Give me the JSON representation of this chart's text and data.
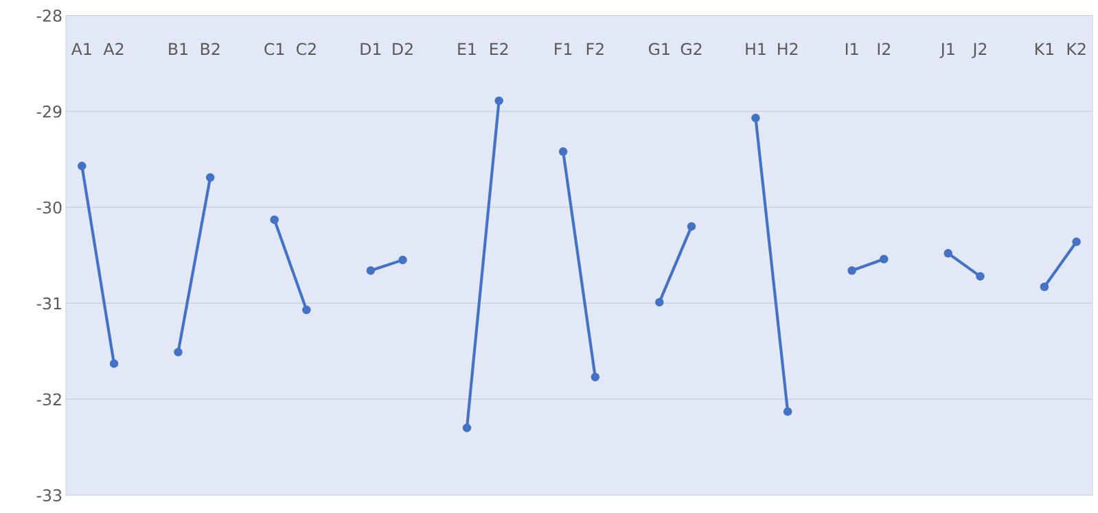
{
  "chart_data": {
    "type": "line",
    "categories": [
      "A1",
      "A2",
      null,
      "B1",
      "B2",
      null,
      "C1",
      "C2",
      null,
      "D1",
      "D2",
      null,
      "E1",
      "E2",
      null,
      "F1",
      "F2",
      null,
      "G1",
      "G2",
      null,
      "H1",
      "H2",
      null,
      "I1",
      "I2",
      null,
      "J1",
      "J2",
      null,
      "K1",
      "K2"
    ],
    "series": [
      {
        "color": "#4472c4",
        "values": [
          -29.57,
          -31.63,
          null,
          -31.51,
          -29.69,
          null,
          -30.13,
          -31.07,
          null,
          -30.66,
          -30.55,
          null,
          -32.3,
          -28.89,
          null,
          -29.42,
          -31.77,
          null,
          -30.99,
          -30.2,
          null,
          -29.07,
          -32.13,
          null,
          -30.66,
          -30.54,
          null,
          -30.48,
          -30.72,
          null,
          -30.83,
          -30.36
        ]
      }
    ],
    "ylim": [
      -33,
      -28
    ],
    "yticks": [
      -33,
      -32,
      -31,
      -30,
      -29,
      -28
    ],
    "grid": "y",
    "marker": "circle",
    "line_style": "solid"
  }
}
